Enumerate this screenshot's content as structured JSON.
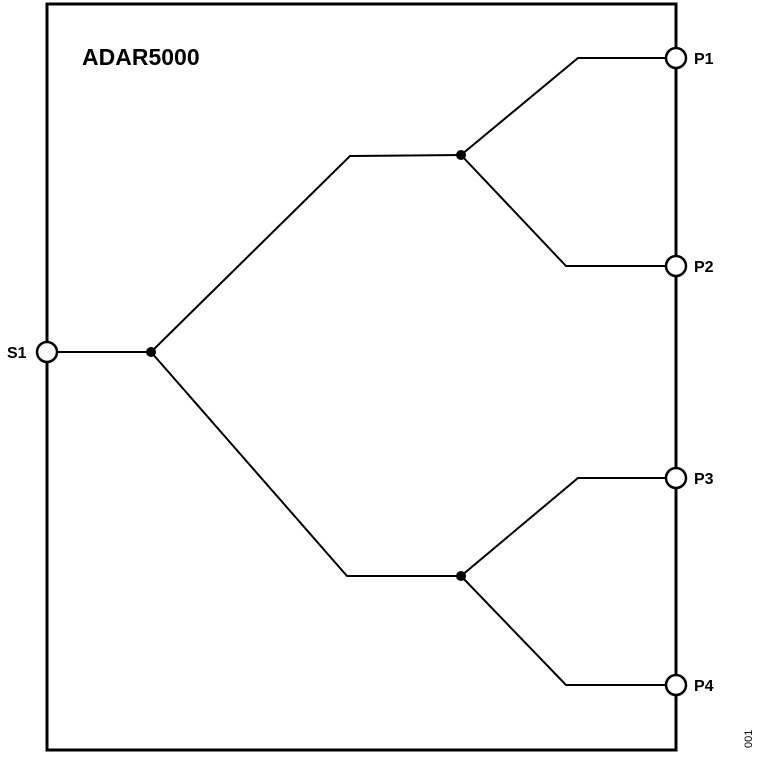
{
  "diagram": {
    "title": "ADAR5000",
    "input_port": "S1",
    "output_ports": [
      "P1",
      "P2",
      "P3",
      "P4"
    ],
    "figure_id": "001",
    "colors": {
      "line": "#000000",
      "background": "#ffffff"
    }
  }
}
